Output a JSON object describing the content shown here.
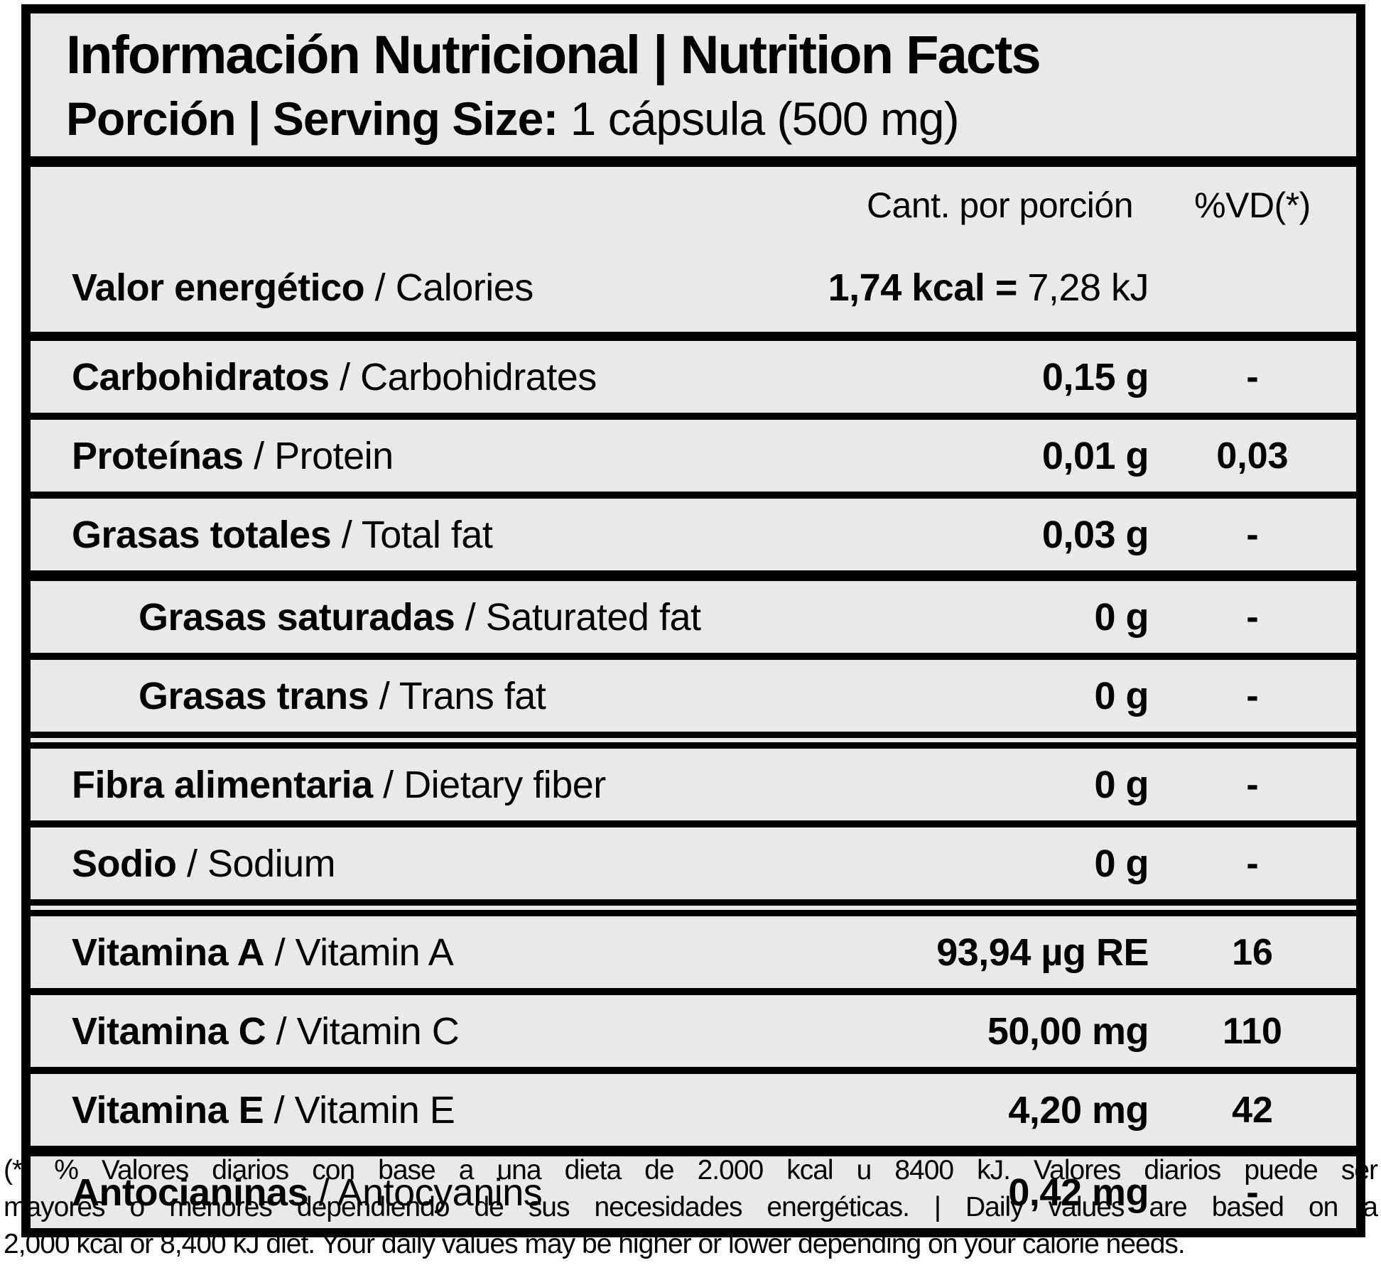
{
  "header": {
    "title": "Información Nutricional | Nutrition Facts",
    "serving_label": "Porción | Serving Size:",
    "serving_value": " 1 cápsula (500 mg)"
  },
  "columns": {
    "amount": "Cant. por porción",
    "dv": "%VD(*)"
  },
  "separator": " / ",
  "energy_row": {
    "label_es": "Valor energético",
    "label_en": "Calories",
    "value_bold": "1,74 kcal = ",
    "value_regular": "7,28 kJ"
  },
  "rows": [
    {
      "es": "Carbohidratos",
      "en": "Carbohidrates",
      "amount": "0,15 g",
      "dv": "-",
      "indent": false,
      "divider": "thin"
    },
    {
      "es": "Proteínas",
      "en": "Protein",
      "amount": "0,01 g",
      "dv": "0,03",
      "indent": false,
      "divider": "thin"
    },
    {
      "es": "Grasas totales",
      "en": "Total fat",
      "amount": "0,03 g",
      "dv": "-",
      "indent": false,
      "divider": "thick"
    },
    {
      "es": "Grasas saturadas",
      "en": "Saturated fat",
      "amount": "0 g",
      "dv": "-",
      "indent": true,
      "divider": "thin"
    },
    {
      "es": "Grasas trans",
      "en": "Trans fat",
      "amount": "0 g",
      "dv": "-",
      "indent": true,
      "divider": "double"
    },
    {
      "es": "Fibra alimentaria",
      "en": "Dietary fiber",
      "amount": "0 g",
      "dv": "-",
      "indent": false,
      "divider": "thin"
    },
    {
      "es": "Sodio",
      "en": "Sodium",
      "amount": "0 g",
      "dv": "-",
      "indent": false,
      "divider": "double"
    },
    {
      "es": "Vitamina A",
      "en": "Vitamin A",
      "amount": "93,94 µg RE",
      "dv": "16",
      "indent": false,
      "divider": "thin"
    },
    {
      "es": "Vitamina C",
      "en": "Vitamin C",
      "amount": "50,00 mg",
      "dv": "110",
      "indent": false,
      "divider": "thin"
    },
    {
      "es": "Vitamina E",
      "en": "Vitamin E",
      "amount": "4,20 mg",
      "dv": "42",
      "indent": false,
      "divider": "thick"
    },
    {
      "es": "Antocianinas",
      "en": "Antocyanins",
      "amount": "0,42 mg",
      "dv": "-",
      "indent": false,
      "divider": null
    }
  ],
  "footnote": {
    "lines": [
      "(*) % Valores diarios con base a una dieta de 2.000 kcal u 8400 kJ. Valores diarios puede ser",
      "mayores o menores dependiendo de sus necesidades energéticas. | Daily values are based on a",
      "2,000 kcal or 8,400 kJ diet. Your daily values may be higher or lower depending on your calorie needs."
    ]
  },
  "colors": {
    "label_background": "#e9e9e9",
    "border": "#000000",
    "page_background": "#ffffff",
    "text": "#000000"
  }
}
